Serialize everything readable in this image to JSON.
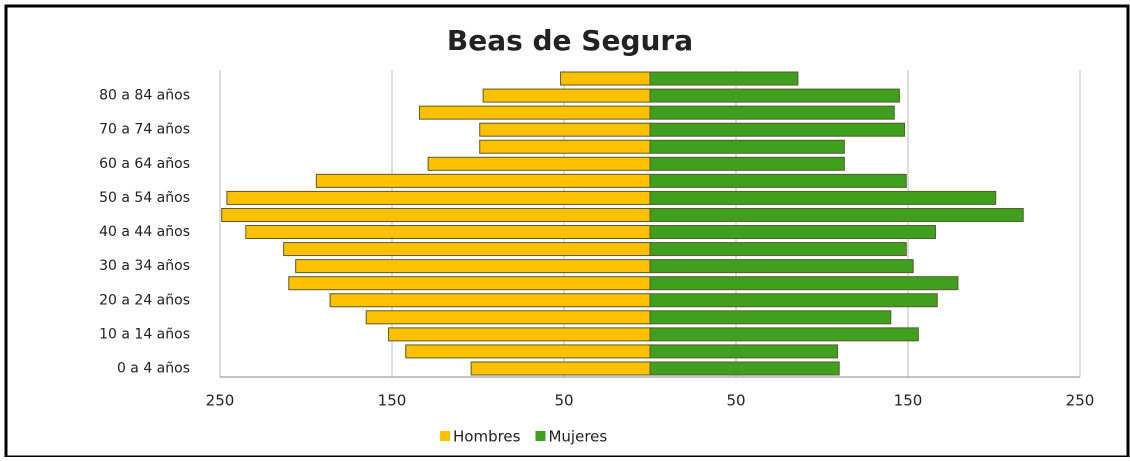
{
  "chart_data": {
    "type": "bar",
    "orientation": "horizontal",
    "title": "Beas de Segura",
    "categories": [
      "0 a 4 años",
      null,
      "10 a 14 años",
      null,
      "20 a 24 años",
      null,
      "30 a 34 años",
      null,
      "40 a 44 años",
      null,
      "50 a 54 años",
      null,
      "60 a 64 años",
      null,
      "70 a 74 años",
      null,
      "80 a 84 años",
      null
    ],
    "series": [
      {
        "name": "Hombres",
        "color": "#ffc000",
        "values": [
          -104,
          -142,
          -152,
          -165,
          -186,
          -210,
          -206,
          -213,
          -235,
          -249,
          -246,
          -194,
          -129,
          -99,
          -99,
          -134,
          -97,
          -52
        ]
      },
      {
        "name": "Mujeres",
        "color": "#3f9f1f",
        "values": [
          110,
          109,
          156,
          140,
          167,
          179,
          153,
          149,
          166,
          217,
          201,
          149,
          113,
          113,
          148,
          142,
          145,
          86
        ]
      }
    ],
    "xlim": [
      -250,
      250
    ],
    "xticks": [
      {
        "value": -250,
        "label": "250"
      },
      {
        "value": -150,
        "label": "150"
      },
      {
        "value": -50,
        "label": "50"
      },
      50,
      150,
      250
    ],
    "grid": true,
    "legend": "bottom"
  }
}
